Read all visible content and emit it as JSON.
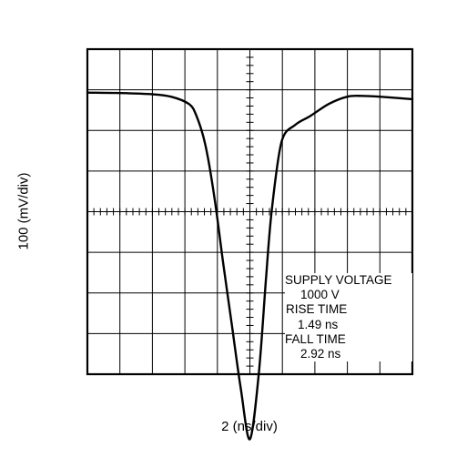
{
  "chart_data": {
    "type": "line",
    "xlabel": "2 (ns/div)",
    "ylabel": "100 (mV/div)",
    "xlim": [
      -10,
      10
    ],
    "ylim": [
      -400,
      400
    ],
    "x_divisions": 10,
    "y_divisions": 8,
    "grid": true,
    "annotations": [
      "SUPPLY VOLTAGE",
      "1000 V",
      "RISE TIME",
      "1.49 ns",
      "FALL TIME",
      "2.92 ns"
    ],
    "series": [
      {
        "x": [
          -10,
          -7.95,
          -6.0,
          -4.85,
          -3.75,
          -3.3,
          -2.75,
          -2.2,
          -1.65,
          -1.1,
          -0.55,
          0.0,
          0.55,
          1.0,
          1.35,
          1.95,
          2.8,
          3.7,
          4.85,
          6.0,
          6.85,
          8.0,
          10
        ],
        "y": [
          293,
          292,
          289,
          283,
          265,
          237,
          166,
          40,
          -124,
          -282,
          -438,
          -560,
          -398,
          -159,
          5,
          172,
          214,
          235,
          265,
          283,
          285,
          283,
          277
        ]
      }
    ]
  }
}
